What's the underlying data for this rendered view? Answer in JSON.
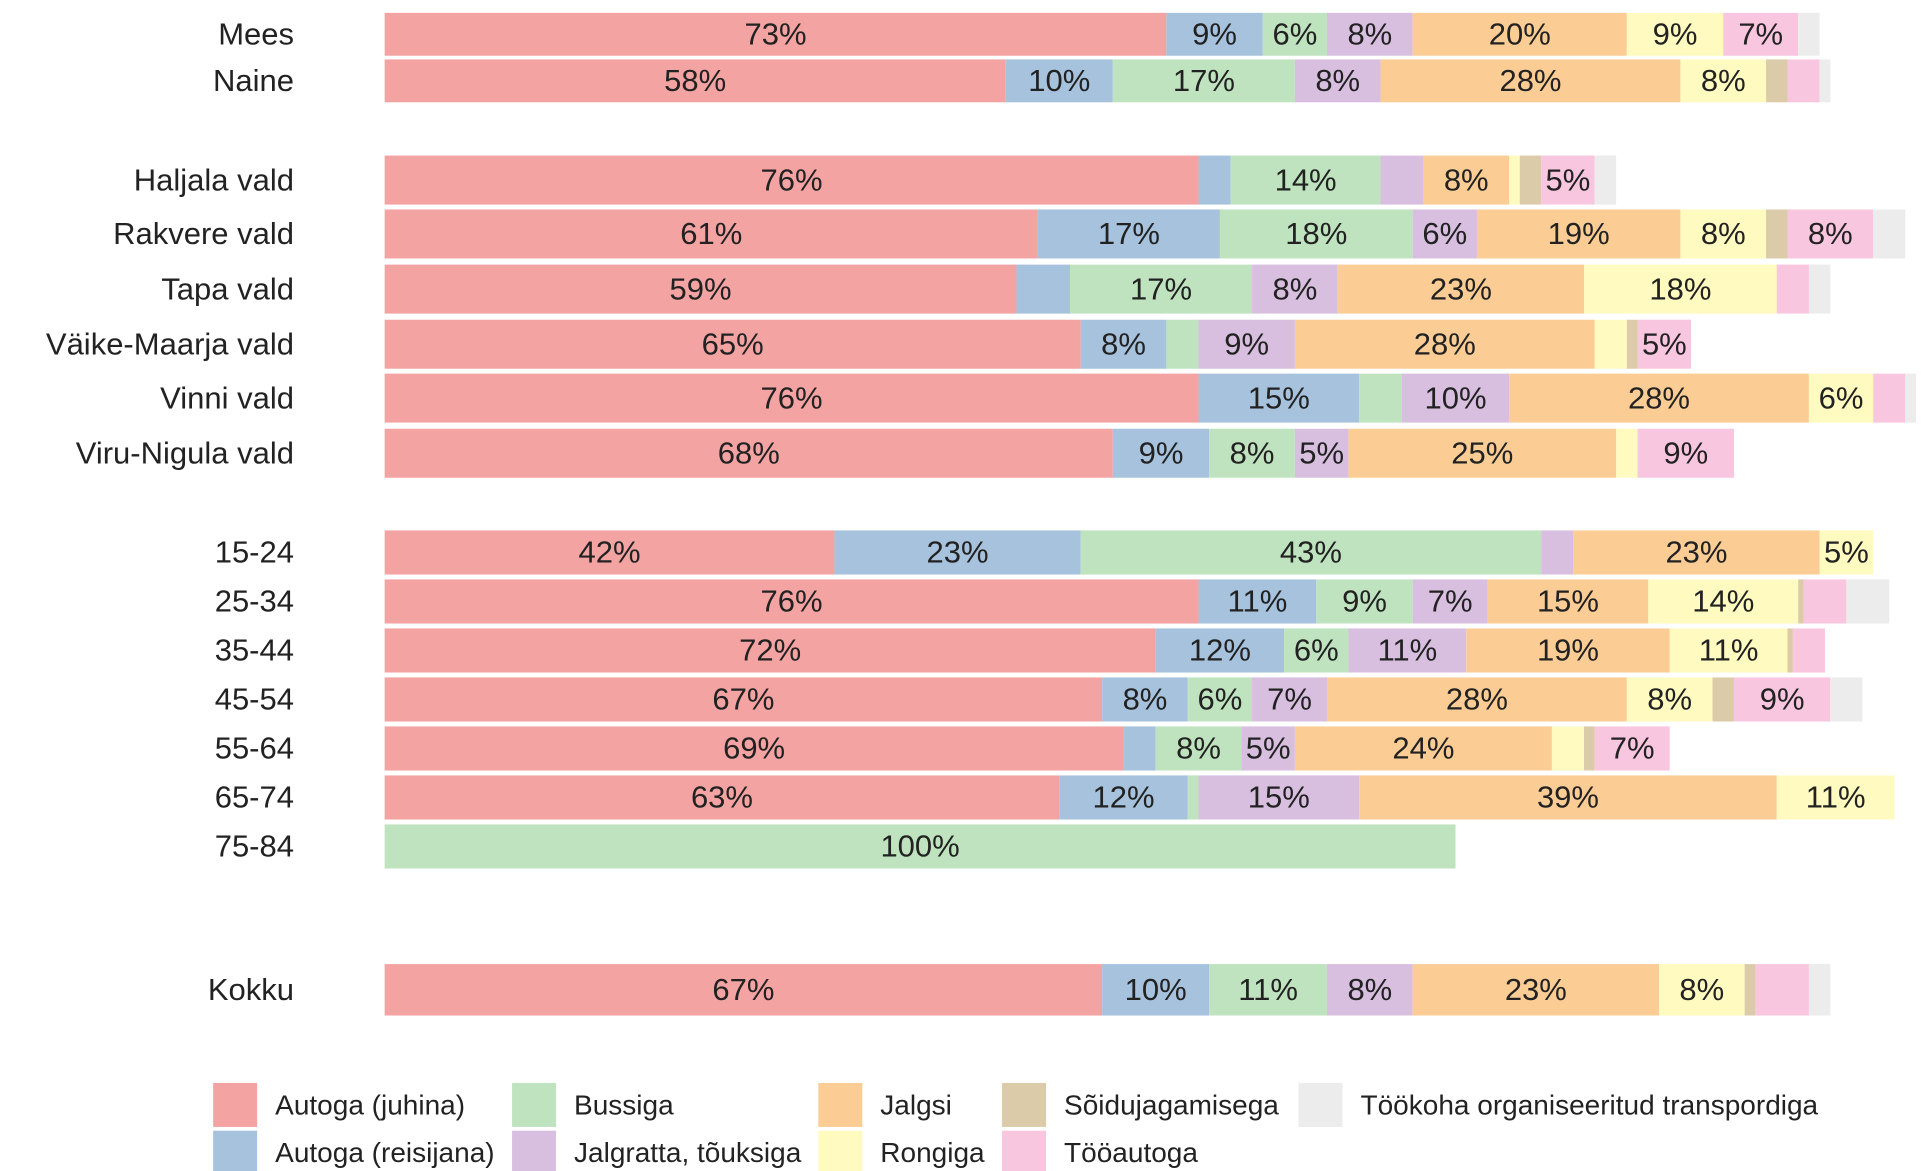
{
  "chart_data": {
    "type": "stacked_bar_horizontal",
    "categories": [
      "Mees",
      "Naine",
      "Haljala vald",
      "Rakvere vald",
      "Tapa vald",
      "Väike-Maarja vald",
      "Vinni vald",
      "Viru-Nigula vald",
      "15-24",
      "25-34",
      "35-44",
      "45-54",
      "55-64",
      "65-74",
      "75-84",
      "Kokku"
    ],
    "series": [
      {
        "name": "Autoga (juhina)",
        "color": "#f4a3a3",
        "values": [
          73,
          58,
          76,
          61,
          59,
          65,
          76,
          68,
          42,
          76,
          72,
          67,
          69,
          63,
          0,
          67
        ],
        "value_labels": [
          "73%",
          "58%",
          "76%",
          "61%",
          "59%",
          "65%",
          "76%",
          "68%",
          "42%",
          "76%",
          "72%",
          "67%",
          "69%",
          "63%",
          null,
          "67%"
        ]
      },
      {
        "name": "Autoga (reisijana)",
        "color": "#a6c2dd",
        "values": [
          9,
          10,
          3,
          17,
          5,
          8,
          15,
          9,
          23,
          11,
          12,
          8,
          3,
          12,
          0,
          10
        ],
        "value_labels": [
          "9%",
          "10%",
          null,
          "17%",
          null,
          "8%",
          "15%",
          "9%",
          "23%",
          "11%",
          "12%",
          "8%",
          null,
          "12%",
          null,
          "10%"
        ]
      },
      {
        "name": "Bussiga",
        "color": "#bfe3bf",
        "values": [
          6,
          17,
          14,
          18,
          17,
          3,
          4,
          8,
          43,
          9,
          6,
          6,
          8,
          1,
          100,
          11
        ],
        "value_labels": [
          "6%",
          "17%",
          "14%",
          "18%",
          "17%",
          null,
          null,
          "8%",
          "43%",
          "9%",
          "6%",
          "6%",
          "8%",
          null,
          "100%",
          "11%"
        ]
      },
      {
        "name": "Jalgratta, tõuksiga",
        "color": "#d8bfe0",
        "values": [
          8,
          8,
          4,
          6,
          8,
          9,
          10,
          5,
          3,
          7,
          11,
          7,
          5,
          15,
          0,
          8
        ],
        "value_labels": [
          "8%",
          "8%",
          null,
          "6%",
          "8%",
          "9%",
          "10%",
          "5%",
          null,
          "7%",
          "11%",
          "7%",
          "5%",
          "15%",
          null,
          "8%"
        ]
      },
      {
        "name": "Jalgsi",
        "color": "#fbcd95",
        "values": [
          20,
          28,
          8,
          19,
          23,
          28,
          28,
          25,
          23,
          15,
          19,
          28,
          24,
          39,
          0,
          23
        ],
        "value_labels": [
          "20%",
          "28%",
          "8%",
          "19%",
          "23%",
          "28%",
          "28%",
          "25%",
          "23%",
          "15%",
          "19%",
          "28%",
          "24%",
          "39%",
          null,
          "23%"
        ]
      },
      {
        "name": "Rongiga",
        "color": "#fffac0",
        "values": [
          9,
          8,
          1,
          8,
          18,
          3,
          6,
          2,
          5,
          14,
          11,
          8,
          3,
          11,
          0,
          8
        ],
        "value_labels": [
          "9%",
          "8%",
          null,
          "8%",
          "18%",
          null,
          "6%",
          null,
          "5%",
          "14%",
          "11%",
          "8%",
          null,
          "11%",
          null,
          "8%"
        ]
      },
      {
        "name": "Sõidujagamisega",
        "color": "#dccba8",
        "values": [
          0,
          2,
          2,
          2,
          0,
          1,
          0,
          0,
          0,
          0.5,
          0.5,
          2,
          1,
          0,
          0,
          1
        ],
        "value_labels": [
          null,
          null,
          null,
          null,
          null,
          null,
          null,
          null,
          null,
          null,
          null,
          null,
          null,
          null,
          null,
          null
        ]
      },
      {
        "name": "Tööautoga",
        "color": "#f9c6e0",
        "values": [
          7,
          3,
          5,
          8,
          3,
          5,
          3,
          9,
          0,
          4,
          3,
          9,
          7,
          0,
          0,
          5
        ],
        "value_labels": [
          "7%",
          null,
          "5%",
          "8%",
          null,
          "5%",
          null,
          "9%",
          null,
          null,
          null,
          "9%",
          "7%",
          null,
          null,
          null
        ]
      },
      {
        "name": "Töökoha organiseeritud transpordiga",
        "color": "#ececec",
        "values": [
          2,
          1,
          2,
          3,
          2,
          0,
          1,
          0,
          0,
          4,
          0,
          3,
          0,
          0,
          0,
          2
        ],
        "value_labels": [
          null,
          null,
          null,
          null,
          null,
          null,
          null,
          null,
          null,
          null,
          null,
          null,
          null,
          null,
          null,
          null
        ]
      }
    ]
  }
}
